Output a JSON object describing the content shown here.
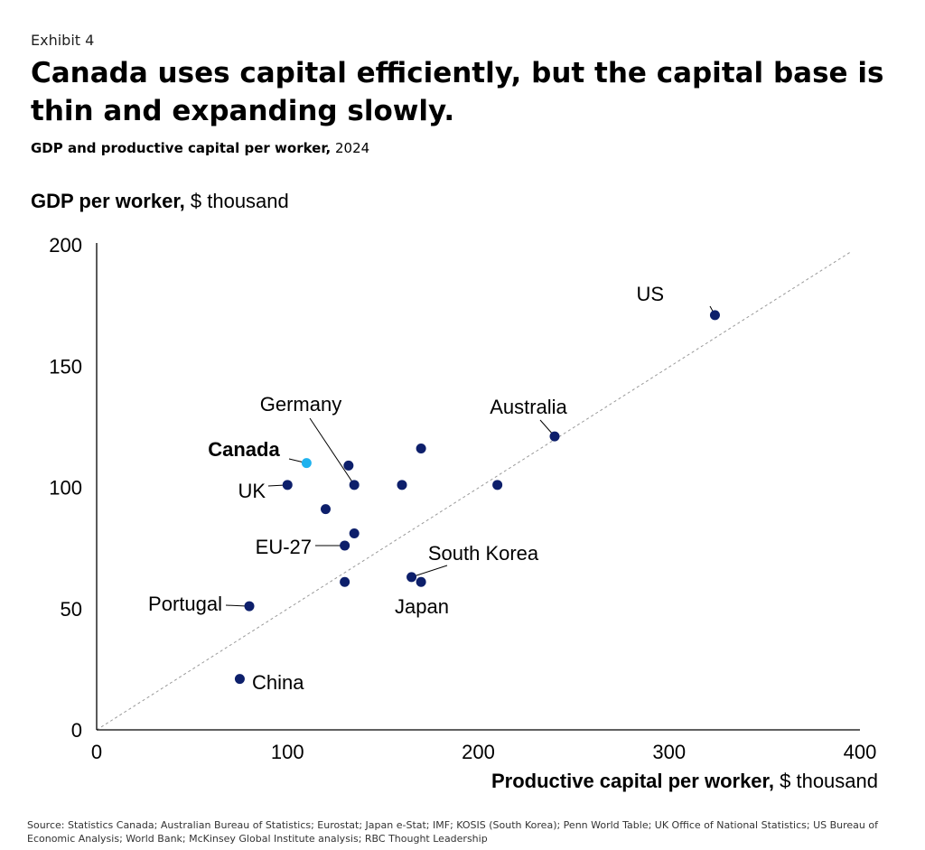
{
  "header": {
    "exhibit": "Exhibit 4",
    "title": "Canada uses capital efficiently, but the capital base is thin and expanding slowly.",
    "subtitle_bold": "GDP and productive capital per worker,",
    "subtitle_rest": " 2024"
  },
  "footer": {
    "source": "Source: Statistics Canada; Australian Bureau of Statistics; Eurostat; Japan e-Stat; IMF; KOSIS (South Korea); Penn World Table; UK Office of National Statistics; US Bureau of Economic Analysis; World Bank; McKinsey Global Institute analysis; RBC Thought Leadership"
  },
  "chart_data": {
    "type": "scatter",
    "title": "GDP and productive capital per worker, 2024",
    "ylabel_bold": "GDP per worker,",
    "ylabel_unit": " $ thousand",
    "xlabel_bold": "Productive capital per worker,",
    "xlabel_unit": " $ thousand",
    "xlim": [
      0,
      400
    ],
    "ylim": [
      0,
      200
    ],
    "xticks": [
      0,
      100,
      200,
      300,
      400
    ],
    "yticks": [
      0,
      50,
      100,
      150,
      200
    ],
    "colors": {
      "default": "#0d1f6b",
      "highlight": "#1fb2ee",
      "reference": "#999999"
    },
    "reference_line": {
      "from": [
        0,
        0
      ],
      "to": [
        395,
        197
      ]
    },
    "points": [
      {
        "x": 324,
        "y": 171,
        "label": "US"
      },
      {
        "x": 240,
        "y": 121,
        "label": "Australia"
      },
      {
        "x": 110,
        "y": 110,
        "label": "Canada",
        "highlight": true
      },
      {
        "x": 132,
        "y": 109,
        "label": ""
      },
      {
        "x": 135,
        "y": 101,
        "label": "Germany"
      },
      {
        "x": 170,
        "y": 116,
        "label": ""
      },
      {
        "x": 160,
        "y": 101,
        "label": ""
      },
      {
        "x": 210,
        "y": 101,
        "label": ""
      },
      {
        "x": 100,
        "y": 101,
        "label": "UK"
      },
      {
        "x": 120,
        "y": 91,
        "label": ""
      },
      {
        "x": 135,
        "y": 81,
        "label": ""
      },
      {
        "x": 130,
        "y": 76,
        "label": "EU-27"
      },
      {
        "x": 165,
        "y": 63,
        "label": "South Korea"
      },
      {
        "x": 170,
        "y": 61,
        "label": "Japan"
      },
      {
        "x": 130,
        "y": 61,
        "label": ""
      },
      {
        "x": 80,
        "y": 51,
        "label": "Portugal"
      },
      {
        "x": 75,
        "y": 21,
        "label": "China"
      }
    ]
  }
}
